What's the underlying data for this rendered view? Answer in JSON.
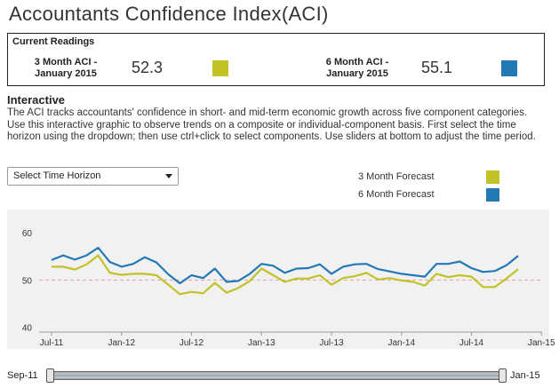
{
  "title": "Accountants Confidence Index(ACI)",
  "readings": {
    "label": "Current Readings",
    "three_month": {
      "name_line1": "3 Month ACI -",
      "name_line2": "January 2015",
      "value": "52.3",
      "color": "#c1c226"
    },
    "six_month": {
      "name_line1": "6 Month ACI -",
      "name_line2": "January 2015",
      "value": "55.1",
      "color": "#2378b6"
    }
  },
  "interactive": {
    "heading": "Interactive",
    "description": "The ACI tracks accountants' confidence in short- and mid-term economic growth across five component categories. Use this interactive graphic to observe trends on a composite or individual-component basis. First select the time horizon using the dropdown; then use ctrl+click to select components. Use sliders at bottom to adjust the time period.",
    "dropdown_label": "Select Time Horizon"
  },
  "legend": [
    {
      "label": "3 Month Forecast",
      "color": "#c1c226"
    },
    {
      "label": "6 Month Forecast",
      "color": "#2378b6"
    }
  ],
  "slider": {
    "start_label": "Sep-11",
    "end_label": "Jan-15"
  },
  "chart_data": {
    "type": "line",
    "x_start": "Jul-11",
    "x_end": "Jan-15",
    "x_ticks": [
      "Jul-11",
      "Jan-12",
      "Jul-12",
      "Jan-13",
      "Jul-13",
      "Jan-14",
      "Jul-14",
      "Jan-15"
    ],
    "y_ticks": [
      40,
      50,
      60
    ],
    "ylim": [
      39,
      63
    ],
    "reference_line": {
      "y": 50,
      "color": "#e8a0a0",
      "style": "dashed"
    },
    "series": [
      {
        "name": "3 Month Forecast",
        "color": "#c1c226",
        "values": [
          52.8,
          52.8,
          52.2,
          53.3,
          55.2,
          51.5,
          51.1,
          51.3,
          51.3,
          51.0,
          49.0,
          47.0,
          47.5,
          47.2,
          49.4,
          47.3,
          48.3,
          49.8,
          52.4,
          51.0,
          49.6,
          50.3,
          50.3,
          51.0,
          49.0,
          50.4,
          50.8,
          51.5,
          50.1,
          50.4,
          49.9,
          49.6,
          48.8,
          51.3,
          50.6,
          51.0,
          50.7,
          48.5,
          48.5,
          50.3,
          52.3
        ]
      },
      {
        "name": "6 Month Forecast",
        "color": "#2378b6",
        "values": [
          54.2,
          55.2,
          54.3,
          55.2,
          56.8,
          53.8,
          52.8,
          53.4,
          54.8,
          53.7,
          51.2,
          49.3,
          51.0,
          50.4,
          52.4,
          49.6,
          49.8,
          51.3,
          53.4,
          53.0,
          51.5,
          52.4,
          52.5,
          53.3,
          51.3,
          52.8,
          53.3,
          53.4,
          52.3,
          51.8,
          51.3,
          51.0,
          50.7,
          53.4,
          53.4,
          53.9,
          52.5,
          51.7,
          51.9,
          53.1,
          55.1
        ]
      }
    ]
  }
}
